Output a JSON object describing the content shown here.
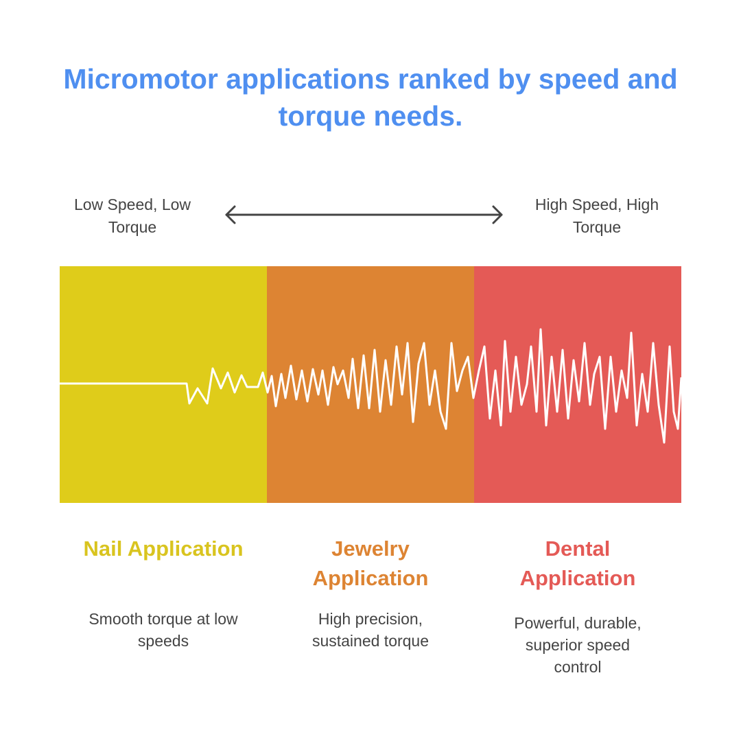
{
  "title": "Micromotor applications ranked by speed and torque needs.",
  "scale": {
    "left_label": "Low Speed, Low Torque",
    "right_label": "High Speed, High Torque"
  },
  "segments": [
    {
      "title": "Nail Application",
      "description": "Smooth torque at low speeds",
      "color": "#dfcc1a",
      "title_color": "#d9c41f"
    },
    {
      "title": "Jewelry Application",
      "description": "High precision, sustained torque",
      "color": "#dd8433",
      "title_color": "#dd8433"
    },
    {
      "title": "Dental Application",
      "description": "Powerful, durable, superior speed control",
      "color": "#e45a56",
      "title_color": "#e45a56"
    }
  ]
}
